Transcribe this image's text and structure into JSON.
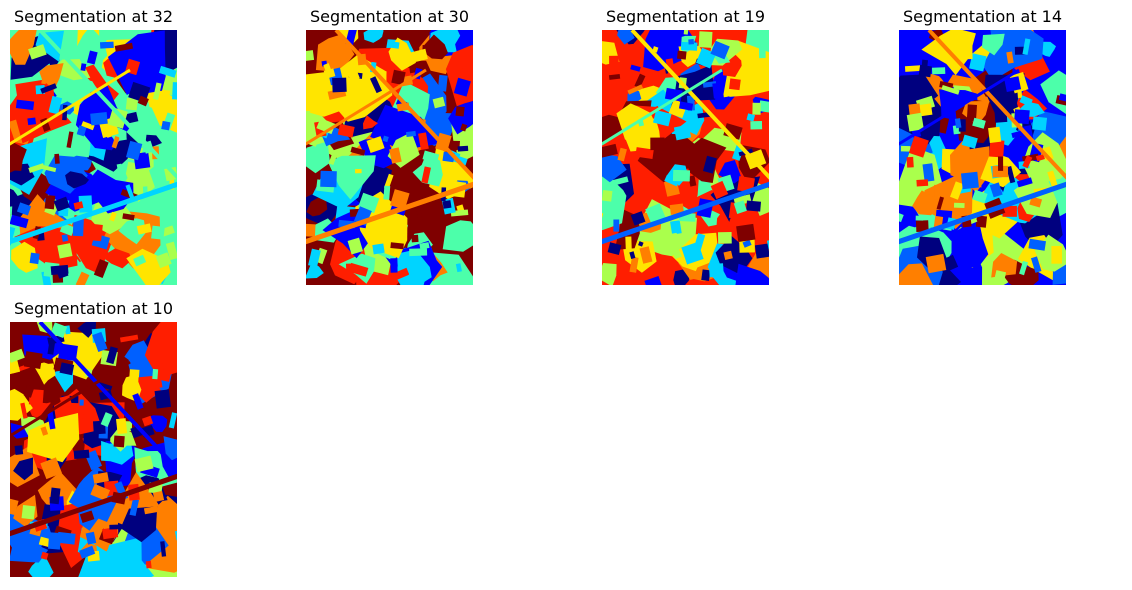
{
  "figure": {
    "panels": [
      {
        "title": "Segmentation at 32",
        "seed": 32
      },
      {
        "title": "Segmentation at 30",
        "seed": 30
      },
      {
        "title": "Segmentation at 19",
        "seed": 19
      },
      {
        "title": "Segmentation at 14",
        "seed": 14
      },
      {
        "title": "Segmentation at 10",
        "seed": 10
      }
    ],
    "colormap": [
      "#00007f",
      "#0000ff",
      "#0060ff",
      "#00d4ff",
      "#4cffaa",
      "#aaff4c",
      "#ffe500",
      "#ff7f00",
      "#ff1e00",
      "#7f0000"
    ]
  }
}
